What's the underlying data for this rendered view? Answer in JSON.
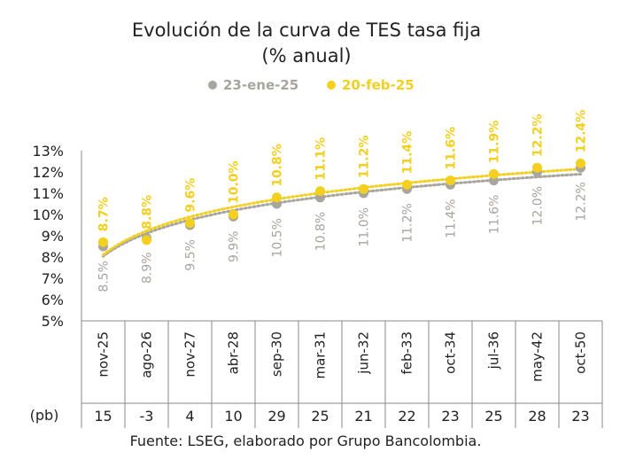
{
  "chart_data": {
    "type": "line",
    "title": [
      "Evolución de la curva de TES tasa fija",
      "(% anual)"
    ],
    "categories": [
      "nov-25",
      "ago-26",
      "nov-27",
      "abr-28",
      "sep-30",
      "mar-31",
      "jun-32",
      "feb-33",
      "oct-34",
      "jul-36",
      "may-42",
      "oct-50"
    ],
    "y_ticks": [
      "13%",
      "12%",
      "11%",
      "10%",
      "9%",
      "8%",
      "7%",
      "6%",
      "5%"
    ],
    "ylim": [
      5,
      13
    ],
    "series": [
      {
        "name": "23-ene-25",
        "color": "#a8a49e",
        "values": [
          8.5,
          8.9,
          9.5,
          9.9,
          10.5,
          10.8,
          11.0,
          11.2,
          11.4,
          11.6,
          12.0,
          12.2
        ],
        "labels": [
          "8.5%",
          "8.9%",
          "9.5%",
          "9.9%",
          "10.5%",
          "10.8%",
          "11.0%",
          "11.2%",
          "11.4%",
          "11.6%",
          "12.0%",
          "12.2%"
        ]
      },
      {
        "name": "20-feb-25",
        "color": "#f3cf1f",
        "values": [
          8.7,
          8.8,
          9.6,
          10.0,
          10.8,
          11.1,
          11.2,
          11.4,
          11.6,
          11.9,
          12.2,
          12.4
        ],
        "labels": [
          "8.7%",
          "8.8%",
          "9.6%",
          "10.0%",
          "10.8%",
          "11.1%",
          "11.2%",
          "11.4%",
          "11.6%",
          "11.9%",
          "12.2%",
          "12.4%"
        ]
      }
    ],
    "pb_label": "(pb)",
    "pb_values": [
      "15",
      "-3",
      "4",
      "10",
      "29",
      "25",
      "21",
      "22",
      "23",
      "25",
      "28",
      "23"
    ],
    "legend_position": "top",
    "grid": false
  },
  "source": "Fuente: LSEG, elaborado por Grupo Bancolombia."
}
